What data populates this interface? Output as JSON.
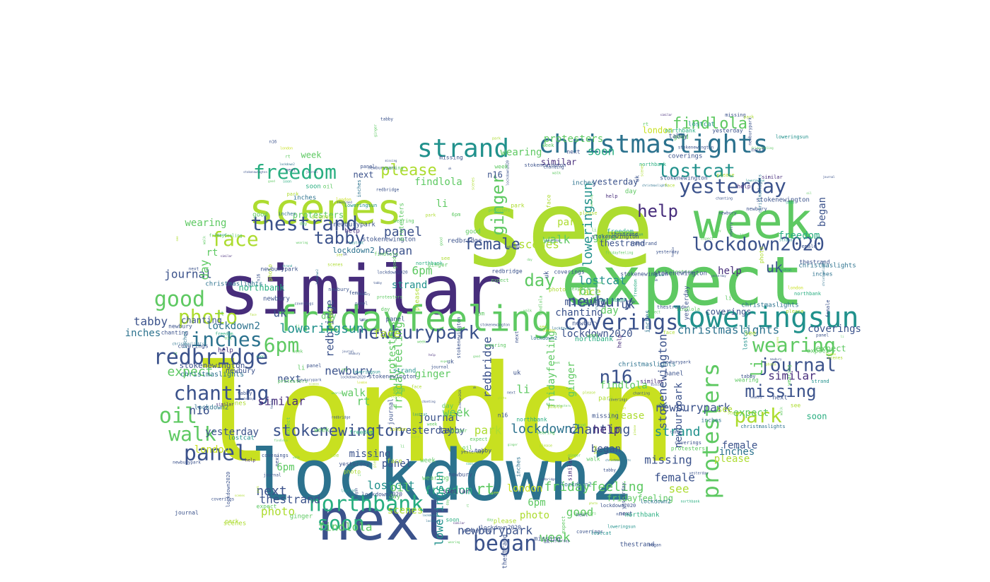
{
  "wordcloud": {
    "palette": [
      "#440154",
      "#472d7b",
      "#3b528b",
      "#2c728e",
      "#21918c",
      "#28ae80",
      "#5ec962",
      "#addc30",
      "#c8e020",
      "#a0da39"
    ],
    "major_words": [
      {
        "text": "london",
        "color": "#c8e020"
      },
      {
        "text": "see",
        "color": "#addc30"
      },
      {
        "text": "lockdown2",
        "color": "#2c728e"
      },
      {
        "text": "similar",
        "color": "#472d7b"
      },
      {
        "text": "expect",
        "color": "#5ec962"
      },
      {
        "text": "next",
        "color": "#3b528b"
      },
      {
        "text": "week",
        "color": "#5ec962"
      },
      {
        "text": "fridayfeeling",
        "color": "#5ec962"
      },
      {
        "text": "scenes",
        "color": "#addc30"
      },
      {
        "text": "loweringsun",
        "color": "#21918c"
      },
      {
        "text": "christmaslights",
        "color": "#2c728e"
      },
      {
        "text": "strand",
        "color": "#21918c"
      },
      {
        "text": "yesterday",
        "color": "#3b528b"
      },
      {
        "text": "lockdown2020",
        "color": "#3b528b"
      },
      {
        "text": "thestrand",
        "color": "#3b528b"
      },
      {
        "text": "northbank",
        "color": "#28ae80"
      },
      {
        "text": "protesters",
        "color": "#5ec962"
      },
      {
        "text": "newburypark",
        "color": "#3b528b"
      },
      {
        "text": "coverings",
        "color": "#3b528b"
      },
      {
        "text": "wearing",
        "color": "#5ec962"
      },
      {
        "text": "redbridge",
        "color": "#3b528b"
      },
      {
        "text": "freedom",
        "color": "#28ae80"
      },
      {
        "text": "lostcat",
        "color": "#21918c"
      },
      {
        "text": "journal",
        "color": "#3b528b"
      },
      {
        "text": "chanting",
        "color": "#3b528b"
      },
      {
        "text": "stokenewington",
        "color": "#3b528b"
      },
      {
        "text": "inches",
        "color": "#2c728e"
      },
      {
        "text": "good",
        "color": "#5ec962"
      },
      {
        "text": "panel",
        "color": "#3b528b"
      },
      {
        "text": "began",
        "color": "#3b528b"
      },
      {
        "text": "soon",
        "color": "#28ae80"
      },
      {
        "text": "walk",
        "color": "#5ec962"
      },
      {
        "text": "photo",
        "color": "#addc30"
      },
      {
        "text": "face",
        "color": "#addc30"
      },
      {
        "text": "6pm",
        "color": "#5ec962"
      },
      {
        "text": "oil",
        "color": "#5ec962"
      },
      {
        "text": "park",
        "color": "#addc30"
      },
      {
        "text": "missing",
        "color": "#3b528b"
      },
      {
        "text": "findlola",
        "color": "#5ec962"
      },
      {
        "text": "tabby",
        "color": "#3b528b"
      },
      {
        "text": "ginger",
        "color": "#5ec962"
      },
      {
        "text": "please",
        "color": "#addc30"
      },
      {
        "text": "help",
        "color": "#472d7b"
      },
      {
        "text": "female",
        "color": "#3b528b"
      },
      {
        "text": "day",
        "color": "#5ec962"
      },
      {
        "text": "n16",
        "color": "#3b528b"
      },
      {
        "text": "uk",
        "color": "#3b528b"
      },
      {
        "text": "rt",
        "color": "#5ec962"
      },
      {
        "text": "li",
        "color": "#5ec962"
      },
      {
        "text": "newbury",
        "color": "#3b528b"
      }
    ],
    "filler_words": [
      "london",
      "see",
      "lockdown2",
      "similar",
      "expect",
      "next",
      "week",
      "fridayfeeling",
      "scenes",
      "loweringsun",
      "christmaslights",
      "strand",
      "yesterday",
      "lockdown2020",
      "thestrand",
      "northbank",
      "protesters",
      "newburypark",
      "coverings",
      "wearing",
      "redbridge",
      "freedom",
      "lostcat",
      "journal",
      "chanting",
      "stokenewington",
      "inches",
      "good",
      "panel",
      "began",
      "soon",
      "walk",
      "photo",
      "face",
      "6pm",
      "oil",
      "park",
      "missing",
      "findlola",
      "tabby",
      "ginger",
      "please",
      "help",
      "female",
      "day",
      "n16",
      "uk",
      "rt",
      "li",
      "newbury"
    ]
  }
}
